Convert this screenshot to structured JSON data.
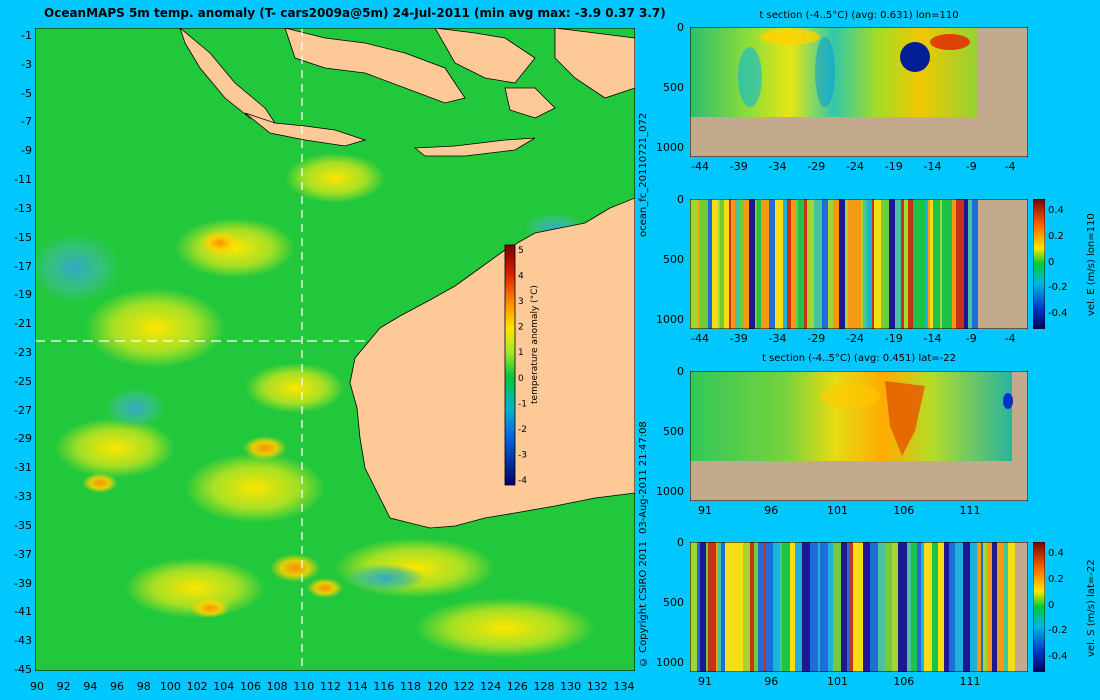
{
  "map": {
    "title": "OceanMAPS 5m temp. anomaly  (T- cars2009a@5m)  24-Jul-2011  (min avg max: -3.9 0.37 3.7)",
    "lat_ticks": [
      "-1",
      "-3",
      "-5",
      "-7",
      "-9",
      "-11",
      "-13",
      "-15",
      "-17",
      "-19",
      "-21",
      "-23",
      "-25",
      "-27",
      "-29",
      "-31",
      "-33",
      "-35",
      "-37",
      "-39",
      "-41",
      "-43",
      "-45"
    ],
    "lon_ticks": [
      "90",
      "92",
      "94",
      "96",
      "98",
      "100",
      "102",
      "104",
      "106",
      "108",
      "110",
      "112",
      "114",
      "116",
      "118",
      "120",
      "122",
      "124",
      "126",
      "128",
      "130",
      "132",
      "134"
    ],
    "colorbar": {
      "label": "temperature anomaly (°C)",
      "ticks": [
        "5",
        "4",
        "3",
        "2",
        "1",
        "0",
        "-1",
        "-2",
        "-3",
        "-4"
      ]
    },
    "section_lines": {
      "lon": 110,
      "lat": -22
    }
  },
  "side_labels": {
    "run_id": "ocean_fc_20110721_072",
    "timestamp": "03-Aug-2011 21:47:08",
    "copyright": "© Copyright CSIRO 2011"
  },
  "panels": {
    "p1": {
      "title": "t section (-4..5°C) (avg: 0.631) lon=110",
      "y_ticks": [
        "0",
        "500",
        "1000"
      ],
      "x_ticks": [
        "-44",
        "-39",
        "-34",
        "-29",
        "-24",
        "-19",
        "-14",
        "-9",
        "-4"
      ]
    },
    "p2": {
      "title": "",
      "y_ticks": [
        "0",
        "500",
        "1000"
      ],
      "x_ticks": [
        "-44",
        "-39",
        "-34",
        "-29",
        "-24",
        "-19",
        "-14",
        "-9",
        "-4"
      ],
      "cb_label": "vel. E (m/s) lon=110",
      "cb_ticks": [
        "0.4",
        "0.2",
        "0",
        "-0.2",
        "-0.4"
      ]
    },
    "p3": {
      "title": "t section (-4..5°C) (avg: 0.451) lat=-22",
      "y_ticks": [
        "0",
        "500",
        "1000"
      ],
      "x_ticks": [
        "91",
        "96",
        "101",
        "106",
        "111"
      ]
    },
    "p4": {
      "title": "",
      "y_ticks": [
        "0",
        "500",
        "1000"
      ],
      "x_ticks": [
        "91",
        "96",
        "101",
        "106",
        "111"
      ],
      "cb_label": "vel. S (m/s) lat=-22",
      "cb_ticks": [
        "0.4",
        "0.2",
        "0",
        "-0.2",
        "-0.4"
      ]
    }
  },
  "colors": {
    "background": "#00c8ff",
    "land": "#fcc997",
    "seafloor": "#c3aa8c",
    "ocean_base": "#22c83c"
  }
}
